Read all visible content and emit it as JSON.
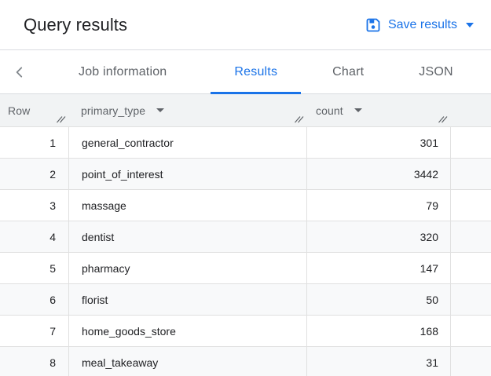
{
  "header": {
    "title": "Query results",
    "save_results": {
      "label": "Save results",
      "icon": "save-icon"
    }
  },
  "tabbar": {
    "back_icon": "chevron-left-icon",
    "tabs": [
      {
        "label": "Job information",
        "active": false
      },
      {
        "label": "Results",
        "active": true
      },
      {
        "label": "Chart",
        "active": false
      },
      {
        "label": "JSON",
        "active": false
      }
    ]
  },
  "table": {
    "columns": [
      {
        "label": "Row",
        "sortable": false,
        "resizable": true
      },
      {
        "label": "primary_type",
        "sortable": true,
        "resizable": true
      },
      {
        "label": "count",
        "sortable": true,
        "resizable": true
      }
    ],
    "rows": [
      {
        "row": "1",
        "primary_type": "general_contractor",
        "count": "301"
      },
      {
        "row": "2",
        "primary_type": "point_of_interest",
        "count": "3442"
      },
      {
        "row": "3",
        "primary_type": "massage",
        "count": "79"
      },
      {
        "row": "4",
        "primary_type": "dentist",
        "count": "320"
      },
      {
        "row": "5",
        "primary_type": "pharmacy",
        "count": "147"
      },
      {
        "row": "6",
        "primary_type": "florist",
        "count": "50"
      },
      {
        "row": "7",
        "primary_type": "home_goods_store",
        "count": "168"
      },
      {
        "row": "8",
        "primary_type": "meal_takeaway",
        "count": "31"
      }
    ]
  },
  "colors": {
    "accent": "#1a73e8",
    "text_primary": "#202124",
    "text_secondary": "#5f6368",
    "header_bg": "#f1f3f4",
    "row_alt_bg": "#f8f9fa",
    "border": "#dadce0",
    "row_border": "#e0e0e0"
  }
}
